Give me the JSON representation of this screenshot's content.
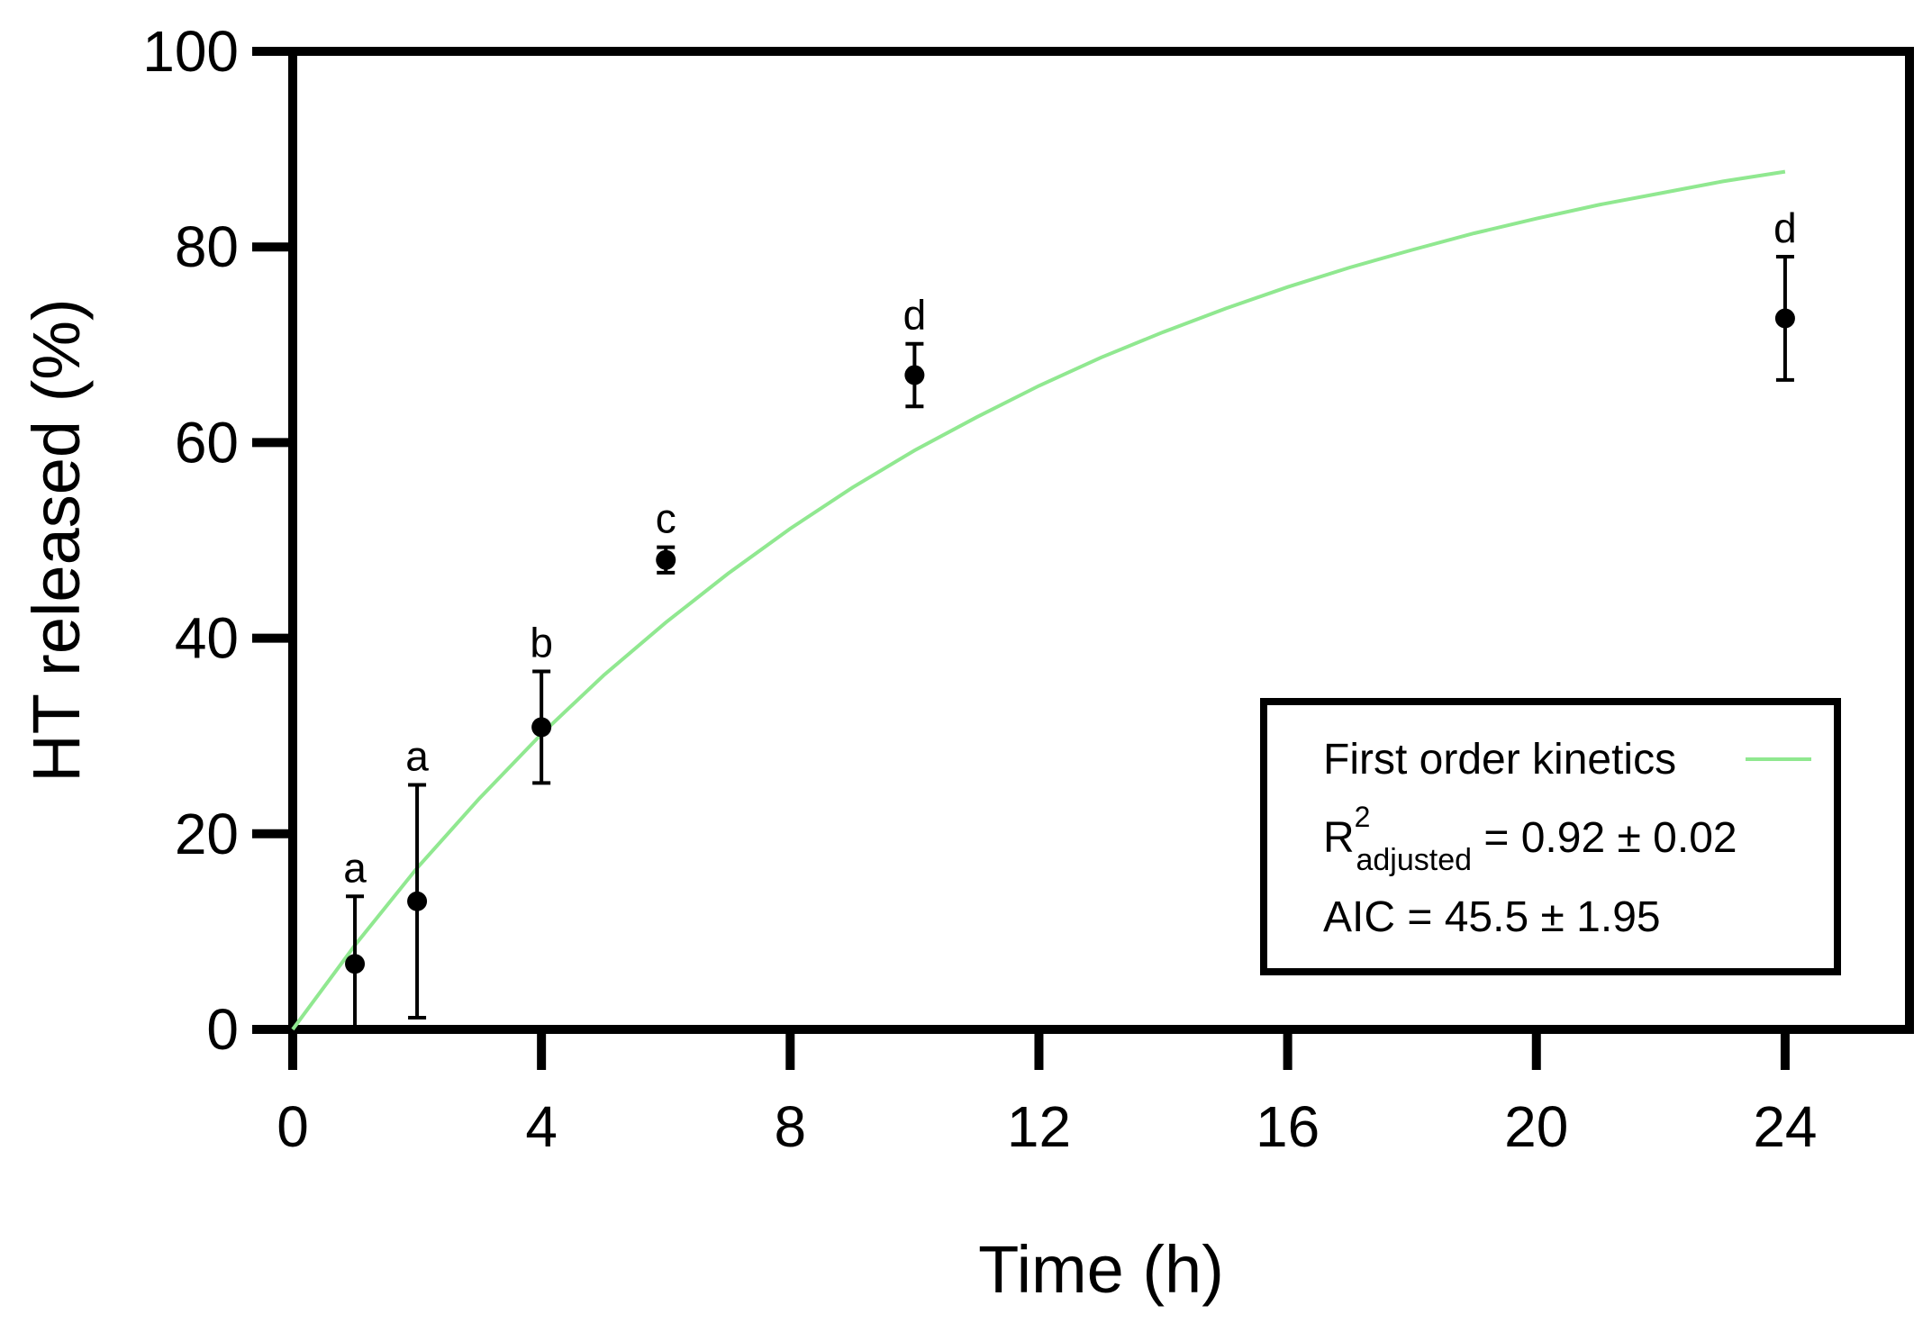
{
  "chart_data": {
    "type": "scatter",
    "xlabel": "Time (h)",
    "ylabel": "HT released (%)",
    "xlim": [
      0,
      26
    ],
    "ylim": [
      0,
      100
    ],
    "xticks": [
      0,
      4,
      8,
      12,
      16,
      20,
      24
    ],
    "yticks": [
      0,
      20,
      40,
      60,
      80,
      100
    ],
    "grid": false,
    "series": [
      {
        "points": [
          {
            "x": 1,
            "y": 6.7,
            "err_low": 6.7,
            "err_high": 6.9,
            "group": "a"
          },
          {
            "x": 2,
            "y": 13.1,
            "err_low": 11.9,
            "err_high": 11.9,
            "group": "a"
          },
          {
            "x": 4,
            "y": 30.9,
            "err_low": 5.7,
            "err_high": 5.7,
            "group": "b"
          },
          {
            "x": 6,
            "y": 48.0,
            "err_low": 1.3,
            "err_high": 1.3,
            "group": "c"
          },
          {
            "x": 10,
            "y": 66.9,
            "err_low": 3.2,
            "err_high": 3.2,
            "group": "d"
          },
          {
            "x": 24,
            "y": 72.7,
            "err_low": 6.3,
            "err_high": 6.3,
            "group": "d"
          }
        ],
        "color": "#000000"
      },
      {
        "name": "First order kinetics",
        "type": "line",
        "color": "#90e890",
        "x": [
          0,
          1,
          2,
          3,
          4,
          5,
          6,
          7,
          8,
          9,
          10,
          11,
          12,
          13,
          14,
          15,
          16,
          17,
          18,
          19,
          20,
          21,
          22,
          23,
          24
        ],
        "values": [
          0,
          8.6,
          16.5,
          23.6,
          30.2,
          36.2,
          41.6,
          46.6,
          51.2,
          55.4,
          59.2,
          62.6,
          65.8,
          68.7,
          71.3,
          73.7,
          75.9,
          77.9,
          79.7,
          81.4,
          82.9,
          84.3,
          85.5,
          86.7,
          87.7
        ]
      }
    ],
    "legend": {
      "position": "bottom-right",
      "line_label": "First order kinetics",
      "r2_base": "R",
      "r2_sup": "2",
      "r2_sub": "adjusted",
      "r2_value": " = 0.92 ± 0.02",
      "aic": "AIC = 45.5 ± 1.95"
    }
  }
}
